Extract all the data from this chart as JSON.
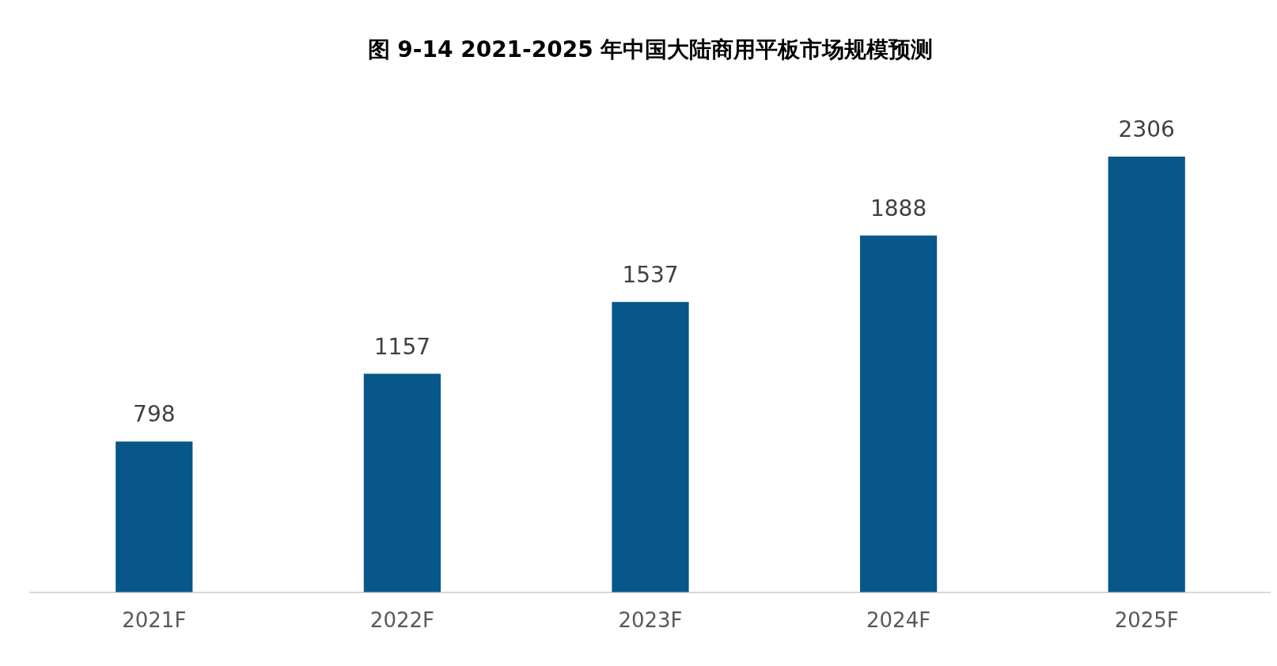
{
  "chart_data": {
    "type": "bar",
    "title": "图 9-14 2021-2025 年中国大陆商用平板市场规模预测",
    "categories": [
      "2021F",
      "2022F",
      "2023F",
      "2024F",
      "2025F"
    ],
    "values": [
      798,
      1157,
      1537,
      1888,
      2306
    ],
    "color": "#07578a",
    "data_labels": true,
    "grid": false,
    "legend": false,
    "tick_labels": "x"
  }
}
